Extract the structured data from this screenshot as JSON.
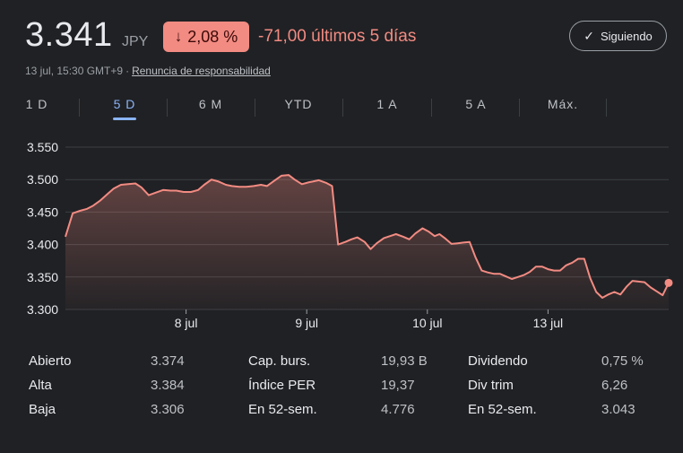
{
  "header": {
    "price": "3.341",
    "currency": "JPY",
    "change_percent": "2,08 %",
    "change_text": "-71,00 últimos 5 días",
    "follow_label": "Siguiendo",
    "timestamp": "13 jul, 15:30 GMT+9",
    "separator": "·",
    "disclaimer": "Renuncia de responsabilidad"
  },
  "tabs": [
    {
      "label": "1 D"
    },
    {
      "label": "5 D"
    },
    {
      "label": "6 M"
    },
    {
      "label": "YTD"
    },
    {
      "label": "1 A"
    },
    {
      "label": "5 A"
    },
    {
      "label": "Máx."
    }
  ],
  "colors": {
    "line": "#f28b82",
    "active_tab": "#8ab4f8",
    "background": "#202124"
  },
  "chart_data": {
    "type": "area",
    "y_ticks": [
      "3.550",
      "3.500",
      "3.450",
      "3.400",
      "3.350",
      "3.300"
    ],
    "y_values": [
      3550,
      3500,
      3450,
      3400,
      3350,
      3300
    ],
    "ylim": [
      3300,
      3550
    ],
    "x_ticks": [
      {
        "label": "8 jul",
        "at": 1
      },
      {
        "label": "9 jul",
        "at": 2
      },
      {
        "label": "10 jul",
        "at": 3
      },
      {
        "label": "13 jul",
        "at": 4
      }
    ],
    "xlim": [
      0,
      5
    ],
    "grid": true,
    "series": [
      {
        "x": [
          0.0,
          0.06,
          0.12,
          0.18,
          0.23,
          0.29,
          0.35,
          0.4,
          0.46,
          0.52,
          0.58,
          0.63,
          0.69,
          0.75,
          0.81,
          0.87,
          0.92,
          0.98,
          1.04,
          1.1,
          1.15,
          1.21,
          1.27,
          1.33,
          1.38,
          1.44,
          1.5,
          1.56,
          1.62,
          1.67,
          1.73,
          1.79,
          1.85,
          1.9,
          1.96,
          2.02,
          2.05,
          2.1,
          2.16,
          2.21,
          2.26,
          2.32,
          2.37,
          2.42,
          2.48,
          2.53,
          2.58,
          2.64,
          2.69,
          2.74,
          2.8,
          2.85,
          2.9,
          2.96,
          3.01,
          3.06,
          3.1,
          3.15,
          3.2,
          3.25,
          3.3,
          3.35,
          3.4,
          3.45,
          3.5,
          3.55,
          3.6,
          3.65,
          3.7,
          3.75,
          3.8,
          3.85,
          3.9,
          3.95,
          4.0,
          4.05,
          4.1,
          4.15,
          4.2,
          4.25,
          4.3,
          4.35,
          4.4,
          4.45,
          4.5,
          4.55,
          4.6,
          4.65,
          4.7,
          4.75,
          4.8,
          4.85,
          4.9,
          4.95,
          5.0
        ],
        "y": [
          3412,
          3448,
          3452,
          3455,
          3460,
          3468,
          3478,
          3486,
          3492,
          3493,
          3494,
          3488,
          3476,
          3480,
          3484,
          3483,
          3483,
          3481,
          3481,
          3484,
          3492,
          3500,
          3497,
          3492,
          3490,
          3489,
          3489,
          3490,
          3492,
          3490,
          3498,
          3506,
          3507,
          3500,
          3493,
          3496,
          3497,
          3499,
          3495,
          3490,
          3400,
          3404,
          3408,
          3411,
          3404,
          3393,
          3402,
          3410,
          3413,
          3416,
          3412,
          3408,
          3417,
          3425,
          3420,
          3413,
          3416,
          3409,
          3401,
          3402,
          3403,
          3404,
          3380,
          3360,
          3357,
          3355,
          3355,
          3351,
          3347,
          3350,
          3353,
          3358,
          3366,
          3366,
          3362,
          3360,
          3360,
          3368,
          3372,
          3378,
          3378,
          3348,
          3327,
          3318,
          3323,
          3327,
          3323,
          3335,
          3344,
          3343,
          3342,
          3334,
          3328,
          3322,
          3341
        ]
      }
    ]
  },
  "stats": [
    {
      "label": "Abierto",
      "value": "3.374"
    },
    {
      "label": "Alta",
      "value": "3.384"
    },
    {
      "label": "Baja",
      "value": "3.306"
    },
    {
      "label": "Cap. burs.",
      "value": "19,93 B"
    },
    {
      "label": "Índice PER",
      "value": "19,37"
    },
    {
      "label": "En 52-sem.",
      "value": "4.776"
    },
    {
      "label": "Dividendo",
      "value": "0,75 %"
    },
    {
      "label": "Div trim",
      "value": "6,26"
    },
    {
      "label": "En 52-sem.",
      "value": "3.043"
    }
  ]
}
